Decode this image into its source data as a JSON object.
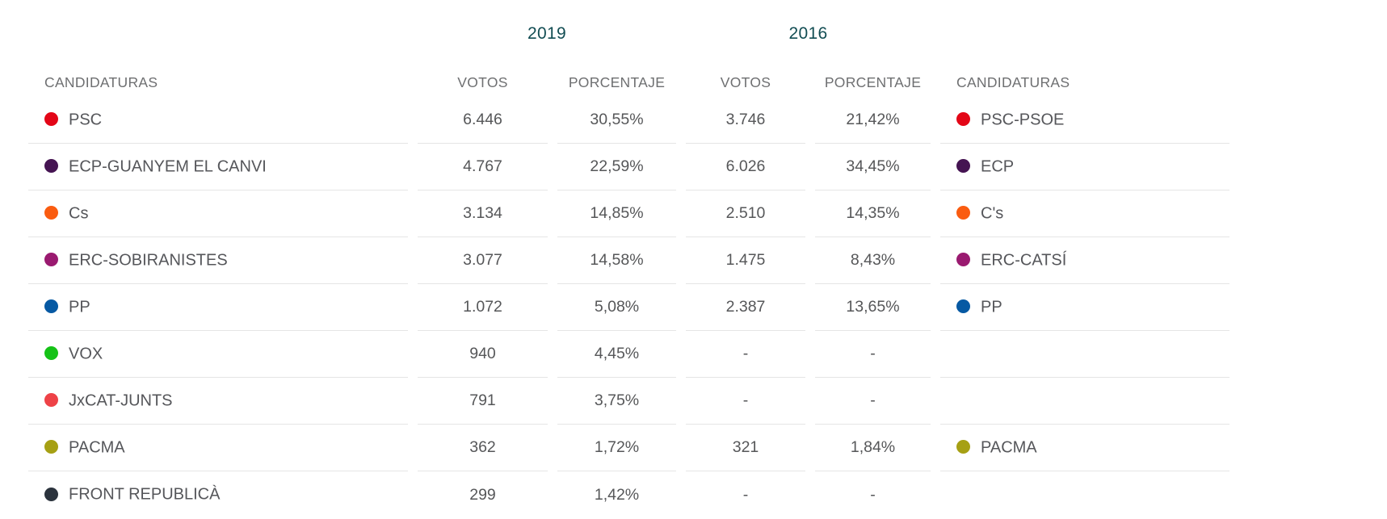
{
  "ui_colors": {
    "year_header": "#124d53",
    "column_header": "#6e6f71",
    "value_text": "#565759",
    "separator": "#e5e5e5",
    "background": "#ffffff"
  },
  "table": {
    "year_headers": {
      "y2019": "2019",
      "y2016": "2016"
    },
    "column_headers": {
      "candidaturas_left": "CANDIDATURAS",
      "votos_2019": "VOTOS",
      "porcentaje_2019": "PORCENTAJE",
      "votos_2016": "VOTOS",
      "porcentaje_2016": "PORCENTAJE",
      "candidaturas_right": "CANDIDATURAS"
    },
    "rows": [
      {
        "party_2019": "PSC",
        "color_2019": "#e30617",
        "votos_2019": "6.446",
        "porcentaje_2019": "30,55%",
        "votos_2016": "3.746",
        "porcentaje_2016": "21,42%",
        "party_2016": "PSC-PSOE",
        "color_2016": "#e30617"
      },
      {
        "party_2019": "ECP-GUANYEM EL CANVI",
        "color_2019": "#451452",
        "votos_2019": "4.767",
        "porcentaje_2019": "22,59%",
        "votos_2016": "6.026",
        "porcentaje_2016": "34,45%",
        "party_2016": "ECP",
        "color_2016": "#451452"
      },
      {
        "party_2019": "Cs",
        "color_2019": "#fa5c10",
        "votos_2019": "3.134",
        "porcentaje_2019": "14,85%",
        "votos_2016": "2.510",
        "porcentaje_2016": "14,35%",
        "party_2016": "C's",
        "color_2016": "#fa5c10"
      },
      {
        "party_2019": "ERC-SOBIRANISTES",
        "color_2019": "#9a1a70",
        "votos_2019": "3.077",
        "porcentaje_2019": "14,58%",
        "votos_2016": "1.475",
        "porcentaje_2016": "8,43%",
        "party_2016": "ERC-CATSÍ",
        "color_2016": "#9a1a70"
      },
      {
        "party_2019": "PP",
        "color_2019": "#0659a3",
        "votos_2019": "1.072",
        "porcentaje_2019": "5,08%",
        "votos_2016": "2.387",
        "porcentaje_2016": "13,65%",
        "party_2016": "PP",
        "color_2016": "#0659a3"
      },
      {
        "party_2019": "VOX",
        "color_2019": "#15c217",
        "votos_2019": "940",
        "porcentaje_2019": "4,45%",
        "votos_2016": "-",
        "porcentaje_2016": "-",
        "party_2016": "",
        "color_2016": null
      },
      {
        "party_2019": "JxCAT-JUNTS",
        "color_2019": "#ee4247",
        "votos_2019": "791",
        "porcentaje_2019": "3,75%",
        "votos_2016": "-",
        "porcentaje_2016": "-",
        "party_2016": "",
        "color_2016": null
      },
      {
        "party_2019": "PACMA",
        "color_2019": "#a6a014",
        "votos_2019": "362",
        "porcentaje_2019": "1,72%",
        "votos_2016": "321",
        "porcentaje_2016": "1,84%",
        "party_2016": "PACMA",
        "color_2016": "#a6a014"
      },
      {
        "party_2019": "FRONT REPUBLICÀ",
        "color_2019": "#2b333d",
        "votos_2019": "299",
        "porcentaje_2019": "1,42%",
        "votos_2016": "-",
        "porcentaje_2016": "-",
        "party_2016": "",
        "color_2016": null
      }
    ]
  },
  "chart_data": {
    "type": "table",
    "title": "Resultados electorales 2019 vs 2016",
    "columns": [
      "CANDIDATURAS",
      "VOTOS 2019",
      "PORCENTAJE 2019",
      "VOTOS 2016",
      "PORCENTAJE 2016",
      "CANDIDATURAS 2016"
    ],
    "rows": [
      [
        "PSC",
        6446,
        30.55,
        3746,
        21.42,
        "PSC-PSOE"
      ],
      [
        "ECP-GUANYEM EL CANVI",
        4767,
        22.59,
        6026,
        34.45,
        "ECP"
      ],
      [
        "Cs",
        3134,
        14.85,
        2510,
        14.35,
        "C's"
      ],
      [
        "ERC-SOBIRANISTES",
        3077,
        14.58,
        1475,
        8.43,
        "ERC-CATSÍ"
      ],
      [
        "PP",
        1072,
        5.08,
        2387,
        13.65,
        "PP"
      ],
      [
        "VOX",
        940,
        4.45,
        null,
        null,
        ""
      ],
      [
        "JxCAT-JUNTS",
        791,
        3.75,
        null,
        null,
        ""
      ],
      [
        "PACMA",
        362,
        1.72,
        321,
        1.84,
        "PACMA"
      ],
      [
        "FRONT REPUBLICÀ",
        299,
        1.42,
        null,
        null,
        ""
      ]
    ],
    "legend_position": "none",
    "grid": "horizontal-row-separators"
  }
}
